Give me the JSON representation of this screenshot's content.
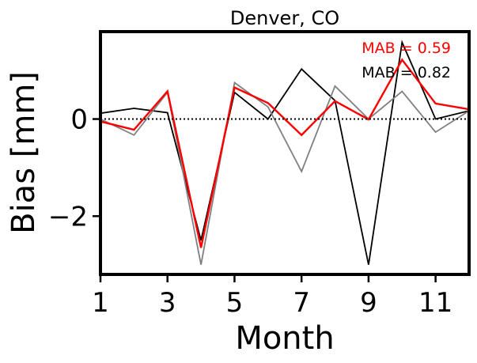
{
  "chart_data": {
    "type": "line",
    "title": "Denver, CO",
    "xlabel": "Month",
    "ylabel": "Bias [mm]",
    "xlim": [
      1,
      12
    ],
    "ylim": [
      -3.2,
      1.8
    ],
    "xticks": [
      1,
      3,
      5,
      7,
      9,
      11
    ],
    "yticks": [
      0,
      -2
    ],
    "ytick_labels": [
      "0",
      "−2"
    ],
    "zero_line": "dotted",
    "grid": false,
    "x": [
      1,
      2,
      3,
      4,
      5,
      6,
      7,
      8,
      9,
      10,
      11,
      12
    ],
    "series": [
      {
        "color": "#000000",
        "values": [
          0.12,
          0.22,
          0.13,
          -2.5,
          0.55,
          0.0,
          1.03,
          0.38,
          -3.0,
          1.58,
          0.0,
          0.17
        ]
      },
      {
        "color": "#808080",
        "values": [
          0.0,
          -0.33,
          0.55,
          -3.0,
          0.75,
          0.25,
          -1.08,
          0.68,
          0.0,
          0.57,
          -0.27,
          0.17
        ]
      },
      {
        "color": "#ff0000",
        "values": [
          -0.05,
          -0.22,
          0.57,
          -2.65,
          0.65,
          0.33,
          -0.33,
          0.37,
          -0.01,
          1.22,
          0.32,
          0.2
        ]
      }
    ],
    "annotations": [
      {
        "text": "MAB = 0.59",
        "color": "#ff0000",
        "placement": "top-right"
      },
      {
        "text": "MAB = 0.82",
        "color": "#000000",
        "placement": "top-right"
      }
    ]
  }
}
